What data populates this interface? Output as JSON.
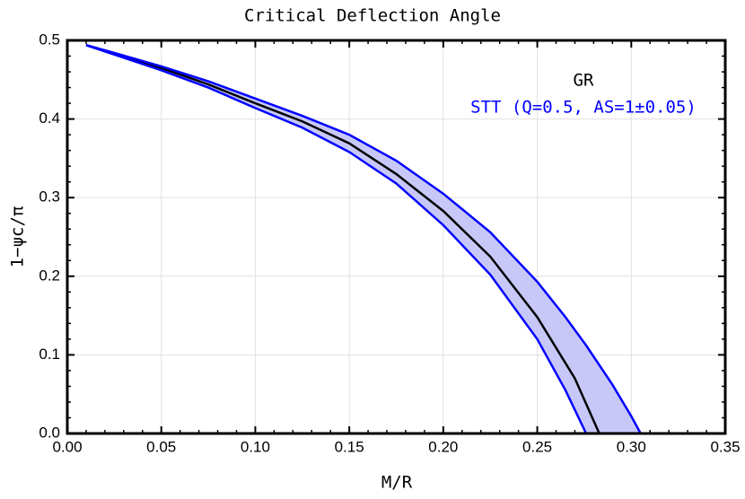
{
  "chart_data": {
    "type": "line",
    "title": "Critical Deflection Angle",
    "x_label": "M/R",
    "y_label": "1−ψc/π",
    "xlim": [
      0,
      0.35
    ],
    "ylim": [
      0,
      0.5
    ],
    "xticks": [
      {
        "value": 0,
        "label": "0.00"
      },
      0.05,
      {
        "value": 0.1,
        "label": "0.10"
      },
      0.15,
      {
        "value": 0.2,
        "label": "0.20"
      },
      0.25,
      {
        "value": 0.3,
        "label": "0.30"
      },
      0.35
    ],
    "yticks": [
      {
        "value": 0,
        "label": "0.0"
      },
      0.1,
      0.2,
      0.3,
      0.4,
      0.5
    ],
    "grid": true,
    "series": [
      {
        "name": "GR",
        "color": "#000000",
        "x": [
          0.01,
          0.025,
          0.05,
          0.075,
          0.1,
          0.125,
          0.15,
          0.175,
          0.2,
          0.225,
          0.25,
          0.27,
          0.283
        ],
        "values": [
          0.494,
          0.483,
          0.465,
          0.444,
          0.42,
          0.397,
          0.369,
          0.33,
          0.283,
          0.225,
          0.148,
          0.07,
          0
        ]
      },
      {
        "name": "STT (Q=0.5, AS=1±0.05)",
        "color": "#0000ff",
        "fill": "#c8c8f8",
        "x": [
          0.01,
          0.025,
          0.05,
          0.075,
          0.1,
          0.125,
          0.15,
          0.175,
          0.2,
          0.225,
          0.25,
          0.265,
          0.276,
          0.29,
          0.3,
          0.305
        ],
        "upper": [
          0.494,
          0.484,
          0.467,
          0.448,
          0.426,
          0.404,
          0.38,
          0.347,
          0.305,
          0.256,
          0.193,
          0.148,
          0.112,
          0.062,
          0.022,
          0
        ],
        "lower": [
          0.494,
          0.482,
          0.462,
          0.44,
          0.414,
          0.389,
          0.358,
          0.318,
          0.265,
          0.202,
          0.12,
          0.055,
          0,
          null,
          null,
          null
        ]
      }
    ]
  }
}
